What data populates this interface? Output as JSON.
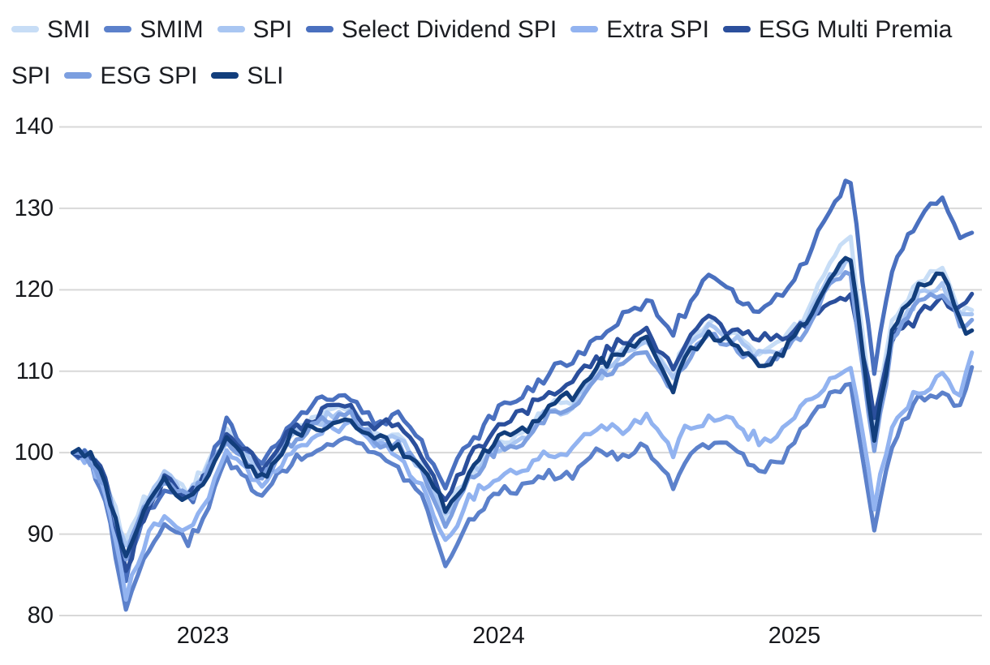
{
  "chart_data": {
    "type": "line",
    "title": "",
    "xlabel": "",
    "ylabel": "",
    "legend_position": "top",
    "grid": "horizontal",
    "x_ticks": [
      "2023",
      "2024",
      "2025"
    ],
    "x_tick_positions": [
      2023,
      2024,
      2025
    ],
    "y_ticks": [
      80,
      90,
      100,
      110,
      120,
      130,
      140
    ],
    "ylim": [
      80,
      140
    ],
    "xlim": [
      2022.56,
      2025.62
    ],
    "x_unit": "decimal_year",
    "x": [
      2022.56,
      2022.62,
      2022.67,
      2022.74,
      2022.8,
      2022.87,
      2022.95,
      2023.0,
      2023.08,
      2023.2,
      2023.3,
      2023.42,
      2023.5,
      2023.58,
      2023.66,
      2023.74,
      2023.82,
      2023.9,
      2024.0,
      2024.08,
      2024.17,
      2024.25,
      2024.33,
      2024.42,
      2024.5,
      2024.59,
      2024.63,
      2024.71,
      2024.79,
      2024.88,
      2024.96,
      2025.04,
      2025.12,
      2025.19,
      2025.27,
      2025.33,
      2025.42,
      2025.5,
      2025.56,
      2025.6
    ],
    "series": [
      {
        "name": "SMI",
        "color": "#C7DDF6",
        "values": [
          100,
          99.5,
          96.5,
          89.5,
          94,
          97.5,
          95,
          97.5,
          102.5,
          97.5,
          102.5,
          105,
          105.5,
          102.5,
          102,
          98.5,
          92.5,
          97.5,
          101.5,
          102.5,
          105.5,
          106.5,
          110,
          113,
          114.5,
          109.5,
          113,
          116,
          114.5,
          112.5,
          113.5,
          117,
          123.5,
          126,
          103.5,
          116,
          121.5,
          122.5,
          117.5,
          117.5
        ]
      },
      {
        "name": "SMIM",
        "color": "#5C81CB",
        "values": [
          100,
          99,
          93.5,
          81.3,
          87,
          91.5,
          89,
          92,
          99.5,
          94.5,
          98.5,
          101.5,
          102,
          99.5,
          98.5,
          94.5,
          86.5,
          92,
          95,
          95.5,
          97.5,
          97,
          100.5,
          99.5,
          101,
          96,
          99,
          101.5,
          100.5,
          98,
          99.5,
          103.5,
          107.5,
          108.5,
          90,
          101,
          106.5,
          108,
          105.5,
          110.5
        ]
      },
      {
        "name": "SPI",
        "color": "#A9C6F2",
        "values": [
          100,
          99.4,
          96,
          88.5,
          93.5,
          97,
          94.5,
          97,
          102,
          97,
          102,
          104.5,
          105,
          102,
          101.5,
          98,
          92,
          97,
          101,
          102,
          105,
          106,
          109.5,
          112,
          113.5,
          108.5,
          112,
          115.5,
          114,
          112,
          113,
          116.5,
          122,
          123.5,
          102,
          114.5,
          119.5,
          120.5,
          117,
          117
        ]
      },
      {
        "name": "Select Dividend SPI",
        "color": "#4A70BF",
        "values": [
          100,
          99.5,
          96.5,
          85,
          92,
          96,
          94,
          96.5,
          103.5,
          98.5,
          103.5,
          107,
          106.5,
          104,
          104.5,
          101,
          96.5,
          101,
          105.5,
          107,
          110,
          111.5,
          114,
          116.5,
          118.5,
          114.5,
          117.5,
          121.5,
          119.5,
          117.5,
          119,
          124,
          130,
          133.5,
          110,
          122.5,
          129,
          131,
          126.5,
          127
        ]
      },
      {
        "name": "Extra SPI",
        "color": "#92B3F0",
        "values": [
          100,
          99.2,
          94.5,
          82.5,
          88.5,
          92.5,
          90.5,
          93.5,
          100.5,
          96,
          100,
          103,
          103.5,
          101,
          100,
          96,
          89,
          94.5,
          96.5,
          97.5,
          100,
          100,
          103.5,
          102.5,
          104,
          100,
          102.5,
          104.5,
          103.5,
          101.5,
          103,
          105.5,
          109.5,
          110.5,
          93.5,
          103.5,
          107.5,
          109.5,
          107,
          112.3
        ]
      },
      {
        "name": "ESG Multi Premia SPI",
        "color": "#2B4F9C",
        "values": [
          100,
          99.6,
          97,
          85.5,
          92.5,
          96.5,
          94.5,
          96.5,
          102.5,
          98,
          103,
          105.5,
          105.5,
          103,
          103.5,
          100,
          94,
          99,
          103.5,
          105,
          107.5,
          108.5,
          111.5,
          113.5,
          115,
          110,
          113.5,
          116.5,
          115,
          113.5,
          114.5,
          116,
          118.5,
          119.5,
          104.5,
          114,
          117,
          119,
          117.5,
          119.5
        ]
      },
      {
        "name": "ESG SPI",
        "color": "#7C9FE0",
        "values": [
          100,
          99.3,
          95.8,
          87.5,
          93,
          96.5,
          94,
          96.5,
          101.5,
          96.5,
          101.5,
          104,
          104.5,
          101.5,
          101,
          97.5,
          91.5,
          96.5,
          100.5,
          101.5,
          104.5,
          105.5,
          109,
          111,
          112.5,
          107.5,
          111,
          114.5,
          113,
          111,
          112,
          115.5,
          121,
          121.5,
          100,
          113.5,
          118.5,
          119.5,
          116,
          116.3
        ]
      },
      {
        "name": "SLI",
        "color": "#123E7C",
        "values": [
          100,
          99.4,
          96.2,
          87,
          92.5,
          96.8,
          94.2,
          96.8,
          102,
          96.8,
          102,
          103.5,
          104,
          101.5,
          101,
          97.8,
          93,
          97.2,
          102,
          102.5,
          105.8,
          106.8,
          110.5,
          112.5,
          113.5,
          108,
          112,
          115,
          113.5,
          111,
          112.5,
          116,
          122,
          123.5,
          101,
          114.5,
          120.5,
          122,
          116,
          115
        ]
      }
    ]
  },
  "colors": {
    "background": "#FFFFFF",
    "gridline": "#D8D8D8",
    "tick_text": "#16181C",
    "legend_text": "#1B1D22"
  }
}
